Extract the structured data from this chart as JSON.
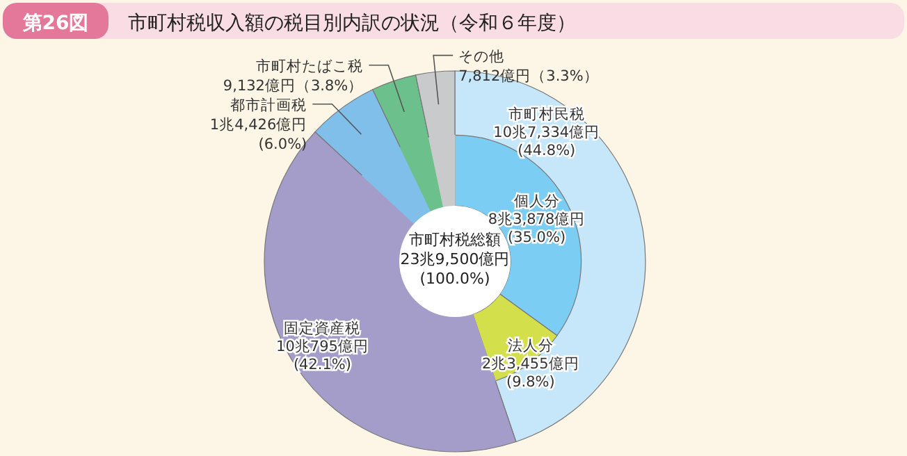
{
  "chart_data": [
    {
      "type": "donut",
      "title": "市町村税収入額の税目別内訳の状況（令和６年度）",
      "annotations": [
        "第26図",
        "市町村税総額\n23兆9,500億円\n(100.0%)"
      ],
      "categories": [
        "市町村民税",
        "固定資産税",
        "都市計画税",
        "市町村たばこ税",
        "その他"
      ],
      "values": [
        44.8,
        42.1,
        6.0,
        3.8,
        3.3
      ],
      "colors": [
        "#c6e7f9",
        "#a59dc9",
        "#7fbfea",
        "#6cc08b",
        "#c9cacb"
      ],
      "value_labels": [
        "10兆7,334億円\n(44.8%)",
        "10兆795億円\n(42.1%)",
        "1兆4,426億円\n(6.0%)",
        "9,132億円（3.8%）",
        "7,812億円（3.3%）"
      ]
    },
    {
      "type": "donut",
      "categories": [
        "個人分",
        "法人分",
        null,
        null,
        null,
        null
      ],
      "values": [
        35.0,
        9.8,
        42.1,
        6.0,
        3.8,
        3.3
      ],
      "colors": [
        "#7ccdf3",
        "#d3e04c",
        "#a59dc9",
        "#7fbfea",
        "#6cc08b",
        "#c9cacb"
      ],
      "value_labels": [
        "8兆3,878億円\n(35.0%)",
        "2兆3,455億円\n(9.8%)",
        null,
        null,
        null,
        null
      ]
    }
  ]
}
